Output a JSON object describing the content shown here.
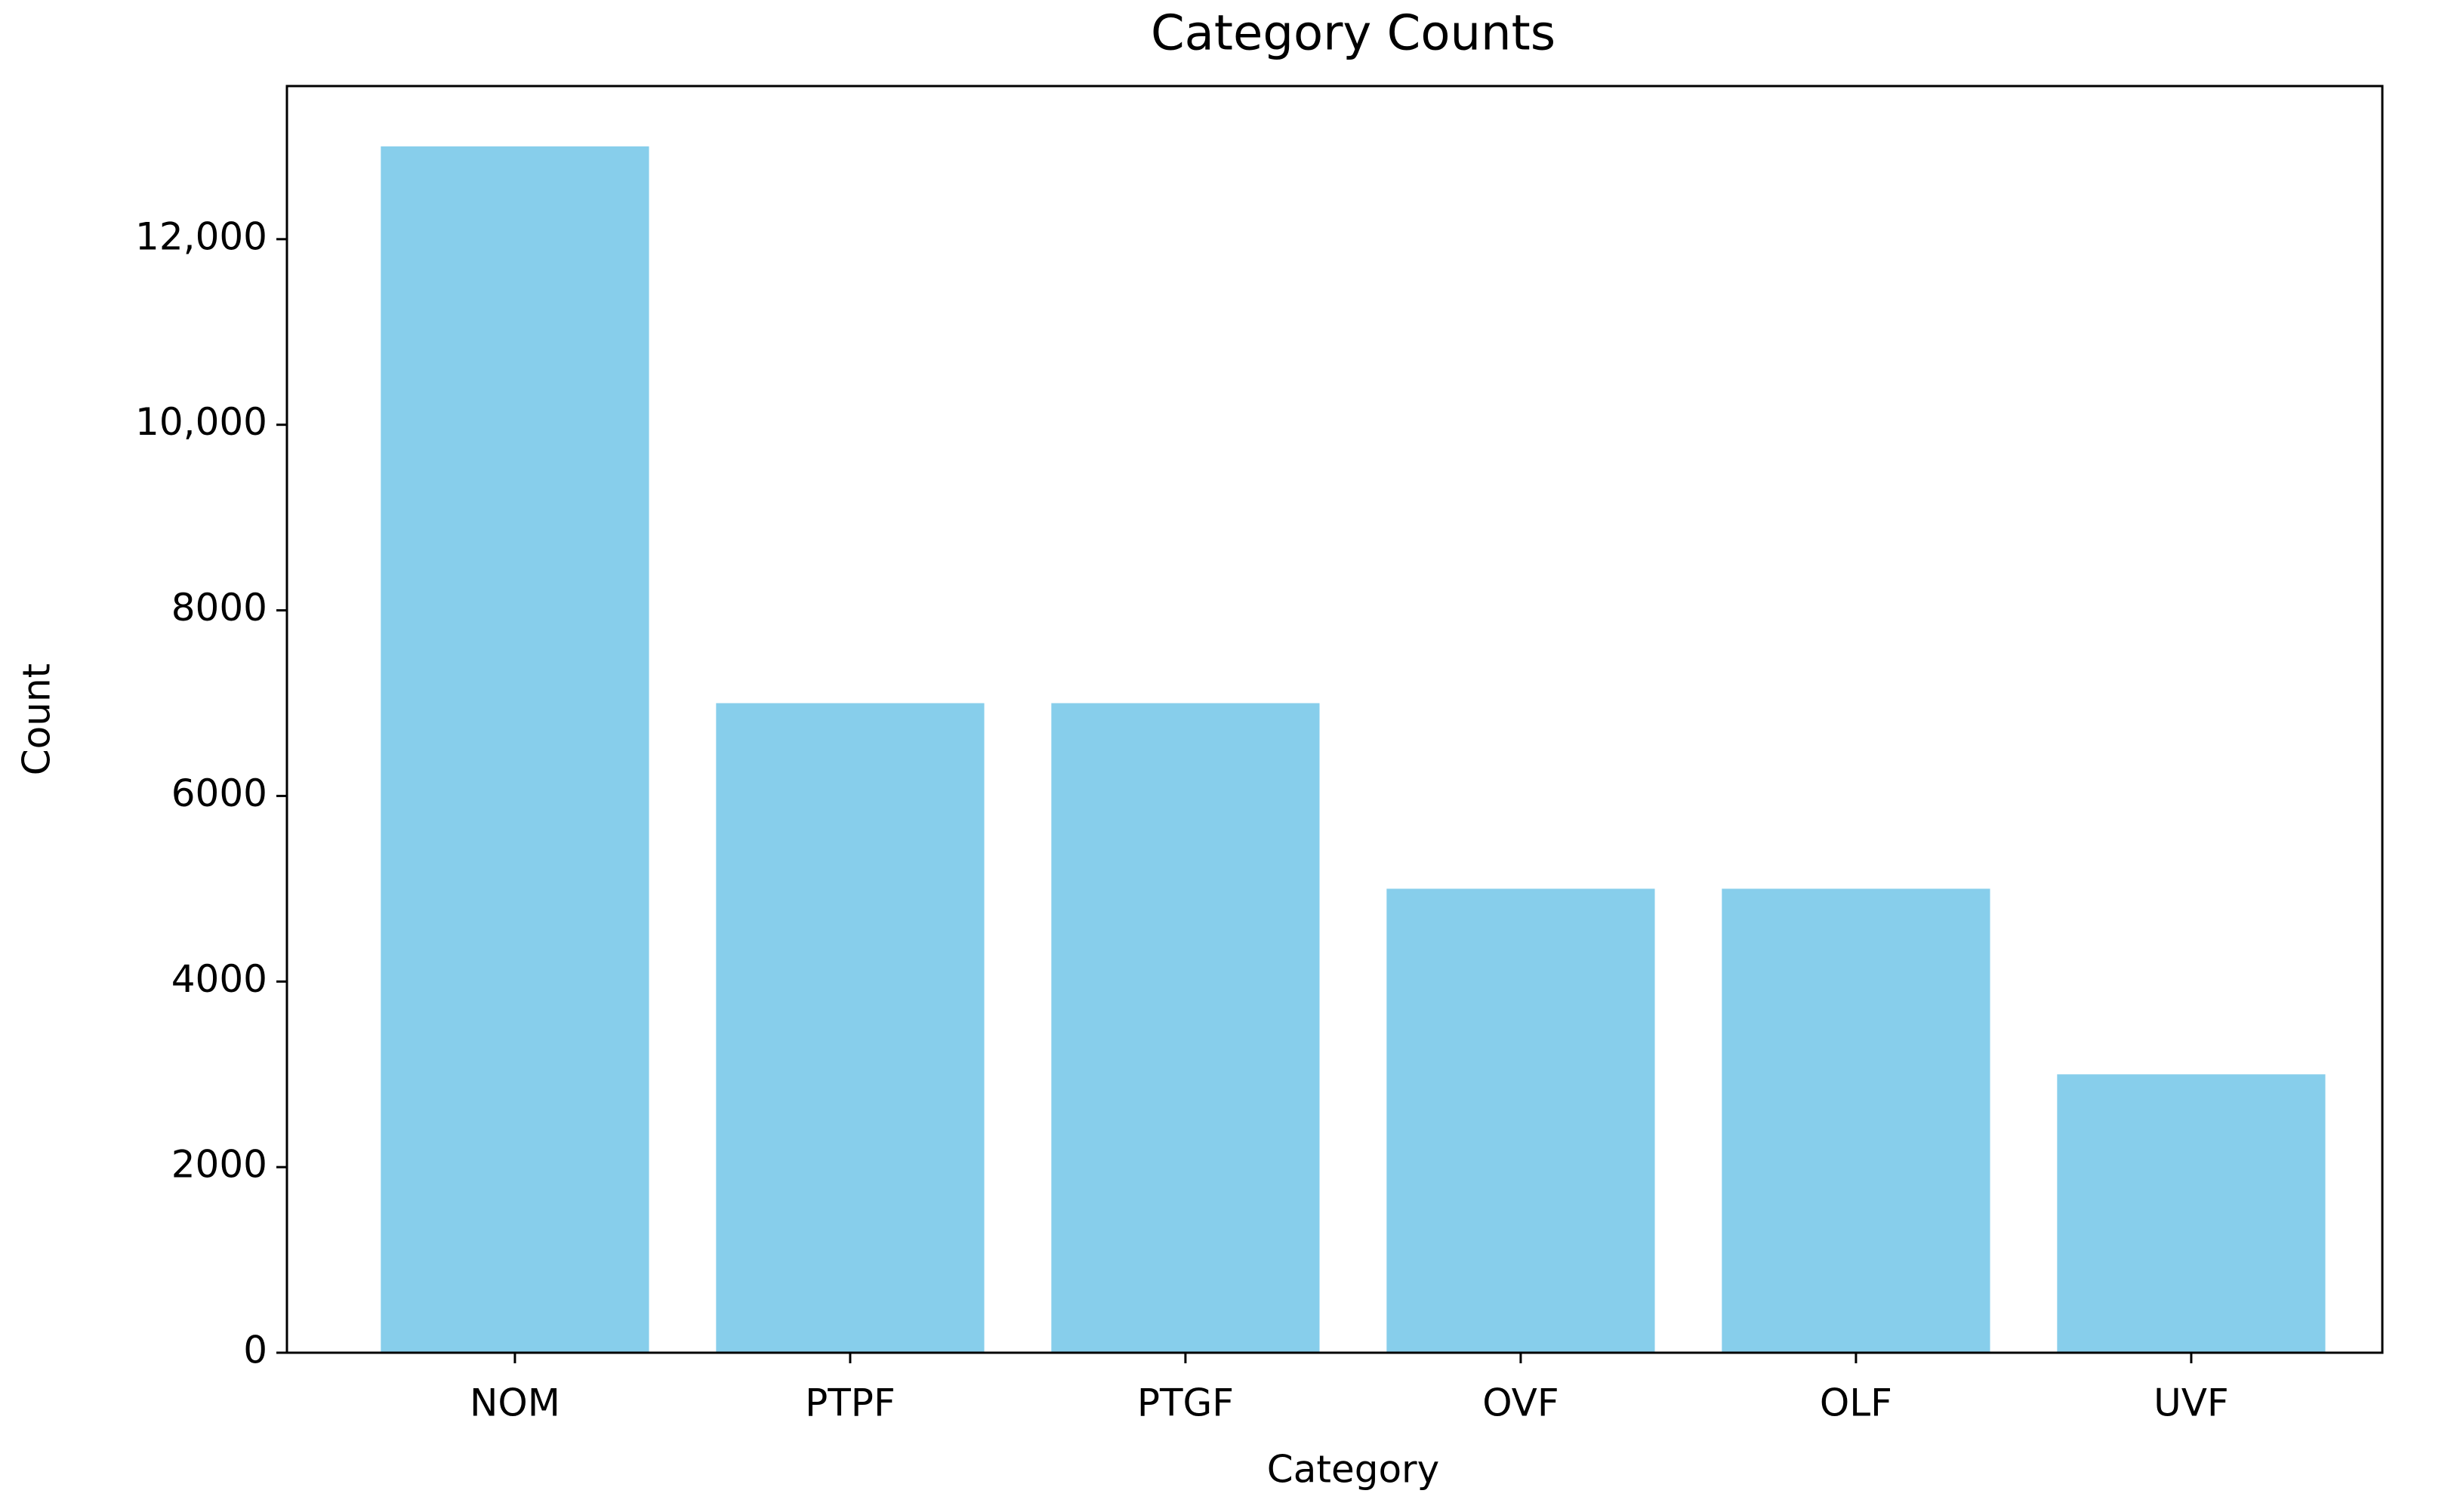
{
  "chart_data": {
    "type": "bar",
    "title": "Category Counts",
    "x_label": "Category",
    "y_label": "Count",
    "categories": [
      "NOM",
      "PTPF",
      "PTGF",
      "OVF",
      "OLF",
      "UVF"
    ],
    "values": [
      13000,
      7000,
      7000,
      5000,
      5000,
      3000
    ],
    "color": "#87ceeb",
    "ylim": [
      0,
      13650
    ],
    "yticks": [
      0,
      2000,
      4000,
      6000,
      8000,
      {
        "value": 10000,
        "label": "10,000"
      },
      {
        "value": 12000,
        "label": "12,000"
      }
    ],
    "grid": false
  }
}
